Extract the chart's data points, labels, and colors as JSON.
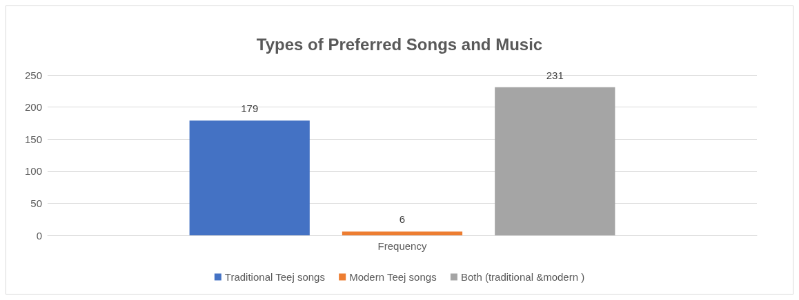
{
  "chart_data": {
    "type": "bar",
    "title": "Types of Preferred Songs and Music",
    "categories": [
      "Frequency"
    ],
    "series": [
      {
        "name": "Traditional Teej songs",
        "color": "#4472c4",
        "values": [
          179
        ]
      },
      {
        "name": "Modern Teej songs",
        "color": "#ed7d31",
        "values": [
          6
        ]
      },
      {
        "name": "Both (traditional &modern )",
        "color": "#a5a5a5",
        "values": [
          231
        ]
      }
    ],
    "ylim": [
      0,
      250
    ],
    "yticks": [
      0,
      50,
      100,
      150,
      200,
      250
    ],
    "grid": "y",
    "legend": "bottom",
    "data_labels": true
  }
}
